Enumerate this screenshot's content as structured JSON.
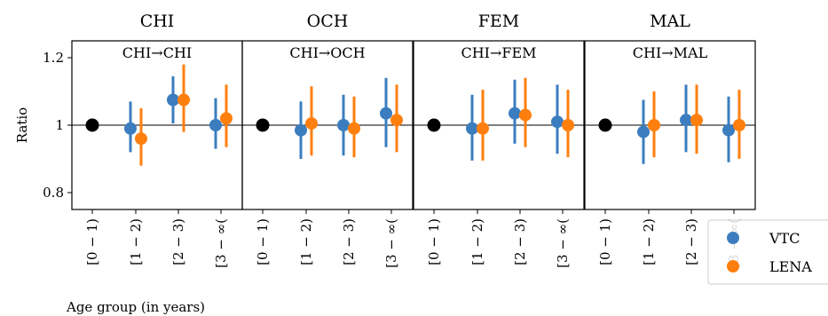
{
  "chart_data": {
    "type": "scatter",
    "ylabel": "Ratio",
    "xlabel": "Age group (in years)",
    "ylim": [
      0.75,
      1.25
    ],
    "yticks": [
      0.8,
      1,
      1.2
    ],
    "ytick_labels": [
      "0.8",
      "1",
      "1.2"
    ],
    "reference_line": 1,
    "grid": false,
    "legend_position": "bottom-right",
    "categories": [
      "[0 − 1)",
      "[1 − 2)",
      "[2 − 3)",
      "[3 − ∞("
    ],
    "legend": [
      {
        "name": "VTC",
        "color": "#3b7dbf"
      },
      {
        "name": "LENA",
        "color": "#ff7f0e"
      }
    ],
    "reference_color": "#000000",
    "panels": [
      {
        "title": "CHI",
        "subtitle": "CHI→CHI",
        "series": [
          {
            "name": "VTC",
            "values": [
              1.0,
              0.99,
              1.075,
              1.0
            ],
            "low": [
              1.0,
              0.92,
              1.005,
              0.93
            ],
            "high": [
              1.0,
              1.07,
              1.145,
              1.08
            ]
          },
          {
            "name": "LENA",
            "values": [
              1.0,
              0.96,
              1.075,
              1.02
            ],
            "low": [
              1.0,
              0.88,
              0.98,
              0.935
            ],
            "high": [
              1.0,
              1.05,
              1.18,
              1.12
            ]
          }
        ]
      },
      {
        "title": "OCH",
        "subtitle": "CHI→OCH",
        "series": [
          {
            "name": "VTC",
            "values": [
              1.0,
              0.985,
              1.0,
              1.035
            ],
            "low": [
              1.0,
              0.9,
              0.91,
              0.935
            ],
            "high": [
              1.0,
              1.07,
              1.09,
              1.14
            ]
          },
          {
            "name": "LENA",
            "values": [
              1.0,
              1.005,
              0.99,
              1.015
            ],
            "low": [
              1.0,
              0.91,
              0.905,
              0.92
            ],
            "high": [
              1.0,
              1.115,
              1.085,
              1.12
            ]
          }
        ]
      },
      {
        "title": "FEM",
        "subtitle": "CHI→FEM",
        "series": [
          {
            "name": "VTC",
            "values": [
              1.0,
              0.99,
              1.035,
              1.01
            ],
            "low": [
              1.0,
              0.895,
              0.945,
              0.915
            ],
            "high": [
              1.0,
              1.09,
              1.135,
              1.12
            ]
          },
          {
            "name": "LENA",
            "values": [
              1.0,
              0.99,
              1.03,
              1.0
            ],
            "low": [
              1.0,
              0.895,
              0.935,
              0.905
            ],
            "high": [
              1.0,
              1.105,
              1.14,
              1.105
            ]
          }
        ]
      },
      {
        "title": "MAL",
        "subtitle": "CHI→MAL",
        "series": [
          {
            "name": "VTC",
            "values": [
              1.0,
              0.98,
              1.015,
              0.985
            ],
            "low": [
              1.0,
              0.885,
              0.92,
              0.89
            ],
            "high": [
              1.0,
              1.075,
              1.12,
              1.085
            ]
          },
          {
            "name": "LENA",
            "values": [
              1.0,
              1.0,
              1.015,
              1.0
            ],
            "low": [
              1.0,
              0.905,
              0.915,
              0.9
            ],
            "high": [
              1.0,
              1.1,
              1.12,
              1.105
            ]
          }
        ]
      }
    ]
  }
}
